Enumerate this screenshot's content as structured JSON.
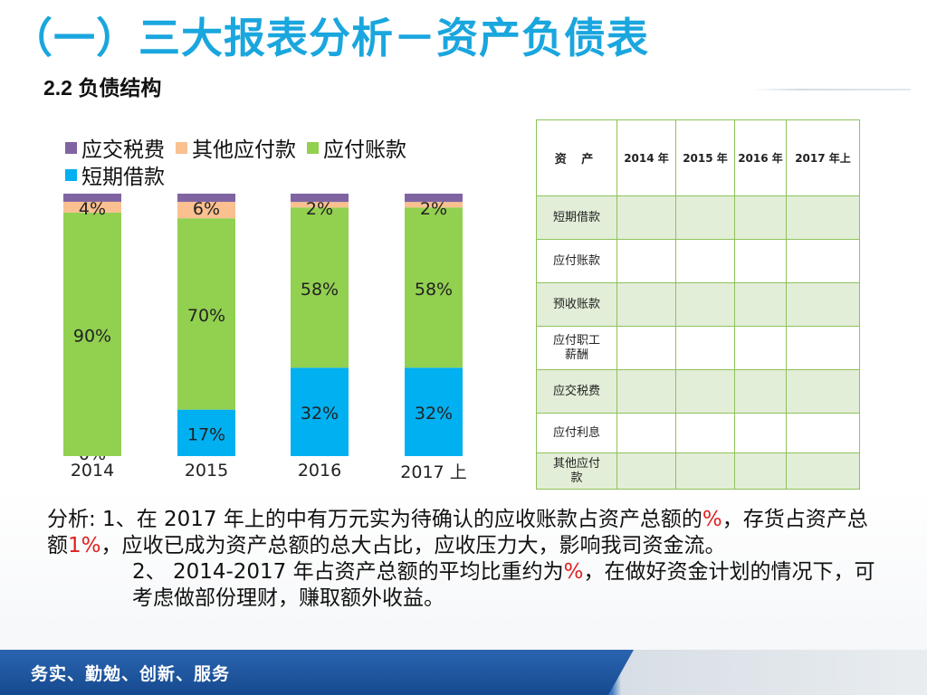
{
  "slide": {
    "title": "（一）三大报表分析－资产负债表",
    "subtitle": "2.2 负债结构"
  },
  "colors": {
    "title": "#1aa6de",
    "tax": "#8064a2",
    "other_payable": "#fac090",
    "accounts_payable": "#92d050",
    "short_loan": "#00b0f0",
    "table_border": "#8fc25a",
    "table_stripe": "#e2eed8",
    "highlight": "#e02020",
    "footer": "#1a4f95"
  },
  "chart_data": {
    "type": "bar",
    "stacked": true,
    "percent": true,
    "categories": [
      "2014",
      "2015",
      "2016",
      "2017 上"
    ],
    "series": [
      {
        "name": "短期借款",
        "color": "#00b0f0",
        "values": [
          0,
          17,
          32,
          32
        ],
        "labels": [
          "0%",
          "17%",
          "32%",
          "32%"
        ]
      },
      {
        "name": "应付账款",
        "color": "#92d050",
        "values": [
          90,
          70,
          58,
          58
        ],
        "labels": [
          "90%",
          "70%",
          "58%",
          "58%"
        ]
      },
      {
        "name": "其他应付款",
        "color": "#fac090",
        "values": [
          4,
          6,
          2,
          2
        ],
        "labels": [
          "4%",
          "6%",
          "2%",
          "2%"
        ]
      },
      {
        "name": "应交税费",
        "color": "#8064a2",
        "values": [
          3,
          3,
          3,
          3
        ],
        "labels": [
          "",
          "",
          "",
          ""
        ]
      }
    ],
    "legend": [
      {
        "name": "应交税费",
        "color": "#8064a2"
      },
      {
        "name": "其他应付款",
        "color": "#fac090"
      },
      {
        "name": "应付账款",
        "color": "#92d050"
      },
      {
        "name": "短期借款",
        "color": "#00b0f0"
      }
    ],
    "legend_position": "top",
    "ylim": [
      0,
      100
    ],
    "grid": false
  },
  "table": {
    "header": [
      "资 产",
      "2014 年",
      "2015 年",
      "2016 年",
      "2017 年上"
    ],
    "rows": [
      {
        "label": "短期借款",
        "cells": [
          "",
          "",
          "",
          ""
        ]
      },
      {
        "label": "应付账款",
        "cells": [
          "",
          "",
          "",
          ""
        ]
      },
      {
        "label": "预收账款",
        "cells": [
          "",
          "",
          "",
          ""
        ]
      },
      {
        "label": "应付职工\n薪酬",
        "cells": [
          "",
          "",
          "",
          ""
        ]
      },
      {
        "label": "应交税费",
        "cells": [
          "",
          "",
          "",
          ""
        ]
      },
      {
        "label": "应付利息",
        "cells": [
          "",
          "",
          "",
          ""
        ]
      },
      {
        "label": "其他应付\n款",
        "cells": [
          "",
          "",
          "",
          ""
        ]
      }
    ]
  },
  "analysis": {
    "p1_a": "分析: 1、在 2017 年上的中有万元实为待确认的应收账款占资产总额的",
    "p1_red1": "%",
    "p1_b": "，存货占资产总额",
    "p1_red2": "1%",
    "p1_c": "，应收已成为资产总额的总大占比，应收压力大，影响我司资金流。",
    "p2_a": "2、 2014-2017 年占资产总额的平均比重约为",
    "p2_red": "%",
    "p2_b": "，在做好资金计划的情况下，可考虑做部份理财，赚取额外收益。"
  },
  "footer": {
    "slogan": "务实、勤勉、创新、服务"
  }
}
